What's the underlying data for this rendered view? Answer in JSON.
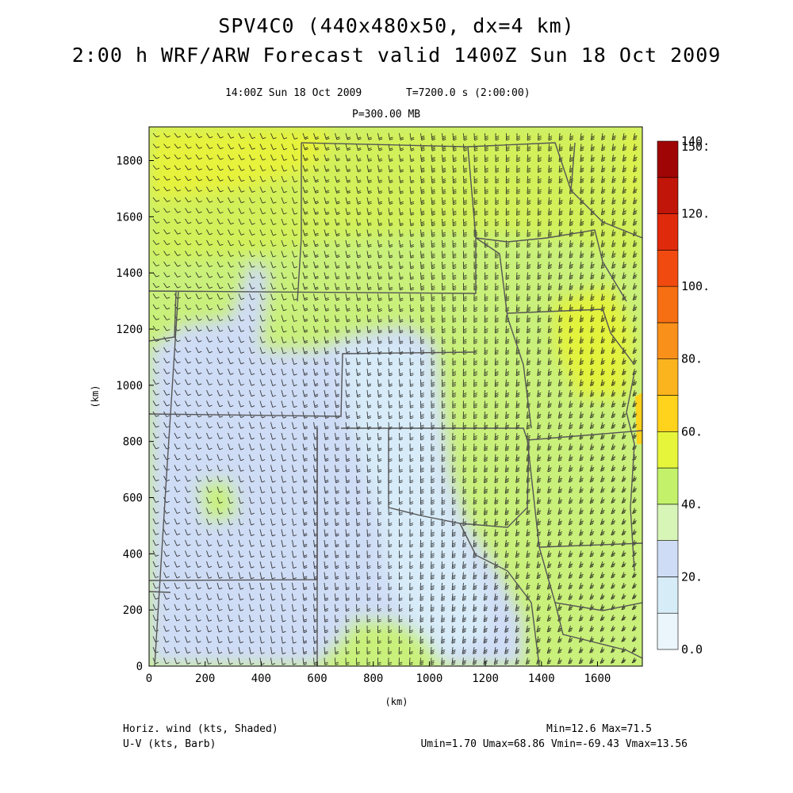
{
  "title": {
    "line1": "SPV4C0 (440x480x50, dx=4 km)",
    "line2": "2:00 h WRF/ARW Forecast valid 1400Z Sun 18 Oct 2009"
  },
  "subtitle": {
    "time": "14:00Z Sun 18 Oct 2009",
    "elapsed": "T=7200.0 s (2:00:00)",
    "level": "P=300.00 MB"
  },
  "axes": {
    "x_label": "(km)",
    "y_label": "(km)",
    "x_ticks": [
      "0",
      "200",
      "400",
      "600",
      "800",
      "1000",
      "1200",
      "1400",
      "1600"
    ],
    "y_ticks": [
      "0",
      "200",
      "400",
      "600",
      "800",
      "1000",
      "1200",
      "1400",
      "1600",
      "1800"
    ],
    "x_range": [
      0,
      1760
    ],
    "y_range": [
      0,
      1920
    ]
  },
  "colorbar": {
    "labels": [
      "0.0",
      "20.",
      "40.",
      "60.",
      "80.",
      "100.",
      "120.",
      "140.",
      "150."
    ],
    "colors": [
      "#eaf6fb",
      "#d6ecf6",
      "#cfdcf5",
      "#d8f5b8",
      "#c3f26a",
      "#e6f53a",
      "#ffd21c",
      "#fbb41e",
      "#f9901a",
      "#f66f13",
      "#f04a10",
      "#e02a0c",
      "#c01508",
      "#a00505"
    ]
  },
  "footer": {
    "left1": "Horiz. wind (kts, Shaded)",
    "left2": "U-V (kts, Barb)",
    "right1": "Min=12.6 Max=71.5",
    "right2": "Umin=1.70 Umax=68.86 Vmin=-69.43 Vmax=13.56"
  }
}
